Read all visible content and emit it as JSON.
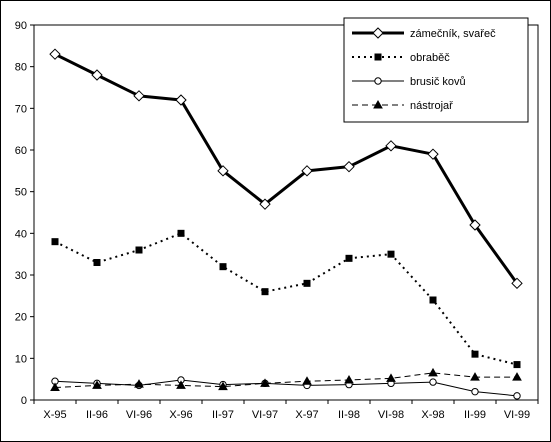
{
  "chart_data": {
    "type": "line",
    "title": "",
    "xlabel": "",
    "ylabel": "",
    "categories": [
      "X-95",
      "II-96",
      "VI-96",
      "X-96",
      "II-97",
      "VI-97",
      "X-97",
      "II-98",
      "VI-98",
      "X-98",
      "II-99",
      "VI-99"
    ],
    "ylim": [
      0,
      90
    ],
    "yticks": [
      0,
      10,
      20,
      30,
      40,
      50,
      60,
      70,
      80,
      90
    ],
    "grid": false,
    "legend_position": "top-right",
    "series": [
      {
        "name": "zámečník, svařeč",
        "values": [
          83,
          78,
          73,
          72,
          55,
          47,
          55,
          56,
          61,
          59,
          42,
          28
        ],
        "line_style": "solid",
        "line_weight": "thick",
        "marker": "diamond-open",
        "color": "#000000"
      },
      {
        "name": "obraběč",
        "values": [
          38,
          33,
          36,
          40,
          32,
          26,
          28,
          34,
          35,
          24,
          11,
          8.5
        ],
        "line_style": "dotted",
        "line_weight": "medium",
        "marker": "square-filled",
        "color": "#000000"
      },
      {
        "name": "brusič kovů",
        "values": [
          4.5,
          4,
          3.5,
          4.8,
          3.7,
          4,
          3.5,
          3.7,
          4,
          4.3,
          2,
          1
        ],
        "line_style": "solid",
        "line_weight": "thin",
        "marker": "circle-open",
        "color": "#000000"
      },
      {
        "name": "nástrojař",
        "values": [
          3,
          3.5,
          3.8,
          3.5,
          3.2,
          4,
          4.5,
          4.8,
          5.2,
          6.5,
          5.5,
          5.5
        ],
        "line_style": "dashed",
        "line_weight": "thin",
        "marker": "triangle-filled",
        "color": "#000000"
      }
    ]
  }
}
